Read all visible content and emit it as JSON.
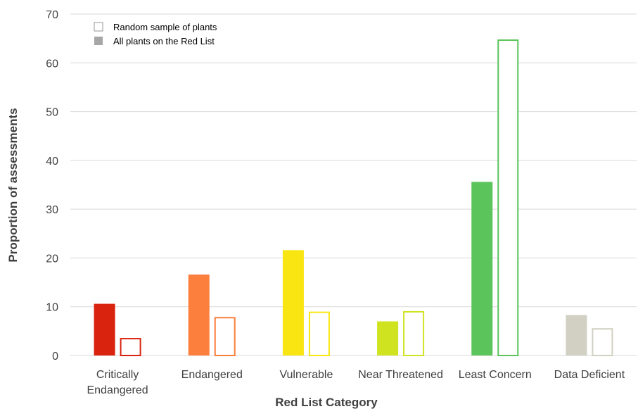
{
  "chart_data": {
    "type": "bar",
    "xlabel": "Red List Category",
    "ylabel": "Proportion of assessments",
    "ylim": [
      0,
      70
    ],
    "yticks": [
      0,
      10,
      20,
      30,
      40,
      50,
      60,
      70
    ],
    "grid": true,
    "legend_position": "top-left",
    "categories": [
      {
        "lines": [
          "Critically",
          "Endangered"
        ],
        "color": "#d9230f"
      },
      {
        "lines": [
          "Endangered"
        ],
        "color": "#fc7f3d"
      },
      {
        "lines": [
          "Vulnerable"
        ],
        "color": "#f9e511"
      },
      {
        "lines": [
          "Near Threatened"
        ],
        "color": "#cfe321"
      },
      {
        "lines": [
          "Least Concern"
        ],
        "color": "#5bc45a"
      },
      {
        "lines": [
          "Data Deficient"
        ],
        "color": "#d1d0c3"
      }
    ],
    "series": [
      {
        "name": "All plants on the Red List",
        "style": "filled",
        "legend_color": "#a6a6a6",
        "values": [
          10.6,
          16.6,
          21.6,
          7.0,
          35.6,
          8.3
        ]
      },
      {
        "name": "Random sample of plants",
        "style": "outline",
        "legend_color": "#a6a6a6",
        "values": [
          3.6,
          7.9,
          9.0,
          9.1,
          64.8,
          5.6
        ]
      }
    ]
  }
}
